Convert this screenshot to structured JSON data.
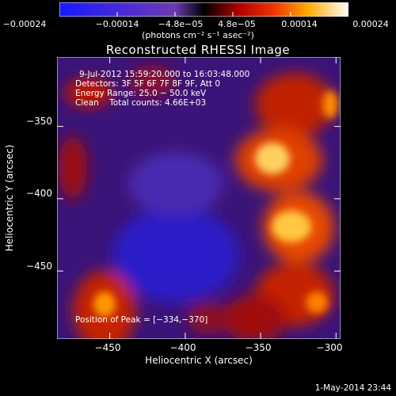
{
  "chart_data": {
    "type": "heatmap",
    "title": "Reconstructed RHESSI Image",
    "xlabel": "Heliocentric X (arcsec)",
    "ylabel": "Heliocentric Y (arcsec)",
    "xlim": [
      -485,
      -297
    ],
    "ylim": [
      -497,
      -302
    ],
    "x_ticks": [
      -450,
      -400,
      -350,
      -300
    ],
    "y_ticks": [
      -350,
      -400,
      -450
    ],
    "x_tick_labels": [
      "−450",
      "−400",
      "−350",
      "−300"
    ],
    "y_tick_labels": [
      "−350",
      "−400",
      "−450"
    ],
    "colorbar": {
      "range": [
        -0.00024,
        0.00024
      ],
      "tick_labels": [
        "−0.00024",
        "−0.00014",
        "−4.8e−05",
        "4.8e−05",
        "0.00014",
        "0.00024"
      ],
      "units": "(photons cm⁻² s⁻¹ asec⁻²)"
    },
    "annotations": {
      "time": "9‑Jul‑2012 15:59:20.000 to 16:03:48.000",
      "detectors": "Detectors: 3F 5F 6F 7F 8F 9F, Att 0",
      "energy": "Energy Range: 25.0 − 50.0 keV",
      "method": "Clean    Total counts: 4.66E+03",
      "peak": "Position of Peak = [−334,−370]"
    },
    "grid": false
  },
  "footer": {
    "timestamp": "1‑May‑2014 23:44"
  }
}
